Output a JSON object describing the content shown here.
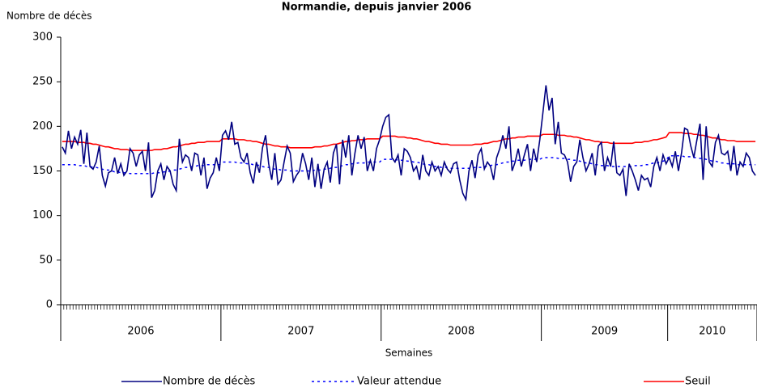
{
  "chart_data": {
    "type": "line",
    "title": "Normandie, depuis janvier 2006",
    "y_label": "Nombre de décès",
    "x_label": "Semaines",
    "ylim": [
      0,
      300
    ],
    "yticks": [
      0,
      50,
      100,
      150,
      200,
      250,
      300
    ],
    "year_groups": [
      {
        "label": "2006",
        "weeks": 52
      },
      {
        "label": "2007",
        "weeks": 52
      },
      {
        "label": "2008",
        "weeks": 52
      },
      {
        "label": "2009",
        "weeks": 41
      },
      {
        "label": "2010",
        "weeks": 29
      }
    ],
    "series": [
      {
        "name": "Nombre de décès",
        "color": "#000080",
        "style": "solid",
        "values": [
          177,
          170,
          195,
          175,
          188,
          180,
          196,
          158,
          193,
          155,
          152,
          160,
          178,
          145,
          133,
          148,
          150,
          165,
          147,
          158,
          145,
          150,
          175,
          170,
          155,
          168,
          172,
          150,
          182,
          120,
          128,
          150,
          158,
          140,
          155,
          150,
          135,
          128,
          186,
          160,
          168,
          165,
          150,
          170,
          168,
          145,
          165,
          130,
          142,
          148,
          165,
          150,
          190,
          195,
          185,
          205,
          180,
          182,
          165,
          160,
          170,
          148,
          136,
          160,
          148,
          176,
          190,
          158,
          140,
          170,
          135,
          140,
          160,
          178,
          170,
          138,
          145,
          150,
          170,
          158,
          140,
          165,
          132,
          158,
          130,
          152,
          160,
          137,
          170,
          180,
          135,
          185,
          165,
          190,
          145,
          170,
          190,
          175,
          188,
          150,
          162,
          150,
          175,
          185,
          200,
          210,
          213,
          165,
          160,
          168,
          145,
          175,
          172,
          165,
          150,
          155,
          140,
          168,
          150,
          145,
          160,
          150,
          155,
          145,
          160,
          152,
          148,
          158,
          160,
          140,
          125,
          118,
          150,
          162,
          142,
          168,
          175,
          152,
          160,
          155,
          140,
          165,
          175,
          190,
          175,
          200,
          150,
          160,
          175,
          155,
          168,
          180,
          150,
          175,
          160,
          185,
          215,
          246,
          218,
          232,
          180,
          205,
          170,
          168,
          160,
          138,
          155,
          160,
          185,
          165,
          150,
          158,
          170,
          145,
          178,
          182,
          150,
          165,
          155,
          183,
          148,
          145,
          152,
          122,
          158,
          150,
          140,
          128,
          145,
          140,
          142,
          132,
          155,
          165,
          150,
          168,
          158,
          165,
          155,
          172,
          150,
          170,
          198,
          196,
          178,
          165,
          185,
          203,
          140,
          200,
          160,
          155,
          182,
          190,
          170,
          168,
          172,
          150,
          178,
          145,
          160,
          155,
          170,
          165,
          150,
          145
        ]
      },
      {
        "name": "Valeur attendue",
        "color": "#0000ff",
        "style": "dotted",
        "values": [
          157,
          157,
          157,
          157,
          157,
          156,
          156,
          156,
          155,
          155,
          154,
          154,
          153,
          152,
          151,
          151,
          150,
          149,
          149,
          148,
          148,
          148,
          147,
          147,
          147,
          147,
          147,
          147,
          147,
          147,
          148,
          148,
          148,
          149,
          149,
          150,
          151,
          151,
          152,
          153,
          154,
          154,
          155,
          155,
          156,
          156,
          156,
          157,
          157,
          157,
          157,
          157,
          160,
          160,
          160,
          160,
          160,
          159,
          159,
          159,
          158,
          158,
          157,
          157,
          156,
          155,
          154,
          154,
          153,
          152,
          152,
          151,
          151,
          151,
          150,
          150,
          150,
          150,
          150,
          150,
          150,
          150,
          151,
          151,
          151,
          152,
          152,
          153,
          154,
          154,
          155,
          156,
          157,
          157,
          158,
          158,
          159,
          159,
          159,
          160,
          160,
          160,
          160,
          160,
          163,
          163,
          163,
          163,
          163,
          162,
          162,
          162,
          161,
          161,
          160,
          160,
          159,
          158,
          157,
          157,
          156,
          155,
          155,
          154,
          154,
          154,
          153,
          153,
          153,
          153,
          153,
          153,
          153,
          153,
          154,
          154,
          154,
          155,
          155,
          156,
          157,
          157,
          158,
          159,
          160,
          160,
          161,
          161,
          162,
          162,
          162,
          163,
          163,
          163,
          163,
          163,
          165,
          165,
          165,
          165,
          165,
          164,
          164,
          164,
          163,
          163,
          162,
          162,
          161,
          160,
          159,
          159,
          158,
          157,
          157,
          156,
          156,
          156,
          155,
          155,
          155,
          155,
          155,
          155,
          155,
          155,
          156,
          156,
          156,
          157,
          157,
          158,
          159,
          159,
          160,
          161,
          162,
          167,
          167,
          167,
          167,
          167,
          166,
          166,
          166,
          165,
          165,
          164,
          164,
          163,
          162,
          161,
          161,
          160,
          159,
          159,
          158,
          158,
          158,
          157,
          157,
          157,
          157,
          157,
          157,
          157
        ]
      },
      {
        "name": "Seuil",
        "color": "#ff0000",
        "style": "solid",
        "values": [
          183,
          183,
          183,
          183,
          183,
          182,
          182,
          182,
          181,
          181,
          180,
          180,
          179,
          178,
          177,
          177,
          176,
          175,
          175,
          174,
          174,
          174,
          173,
          173,
          173,
          173,
          173,
          173,
          173,
          173,
          174,
          174,
          174,
          175,
          175,
          176,
          177,
          177,
          178,
          179,
          180,
          180,
          181,
          181,
          182,
          182,
          182,
          183,
          183,
          183,
          183,
          183,
          186,
          186,
          186,
          186,
          186,
          185,
          185,
          185,
          184,
          184,
          183,
          183,
          182,
          181,
          180,
          180,
          179,
          178,
          178,
          177,
          177,
          177,
          176,
          176,
          176,
          176,
          176,
          176,
          176,
          176,
          177,
          177,
          177,
          178,
          178,
          179,
          180,
          180,
          181,
          182,
          183,
          183,
          184,
          184,
          185,
          185,
          185,
          186,
          186,
          186,
          186,
          186,
          189,
          189,
          189,
          189,
          189,
          188,
          188,
          188,
          187,
          187,
          186,
          186,
          185,
          184,
          183,
          183,
          182,
          181,
          181,
          180,
          180,
          180,
          179,
          179,
          179,
          179,
          179,
          179,
          179,
          179,
          180,
          180,
          180,
          181,
          181,
          182,
          183,
          183,
          184,
          185,
          186,
          186,
          187,
          187,
          188,
          188,
          188,
          189,
          189,
          189,
          189,
          189,
          191,
          191,
          191,
          191,
          191,
          190,
          190,
          190,
          189,
          189,
          188,
          188,
          187,
          186,
          185,
          185,
          184,
          183,
          183,
          182,
          182,
          182,
          181,
          181,
          181,
          181,
          181,
          181,
          181,
          181,
          182,
          182,
          182,
          183,
          183,
          184,
          185,
          185,
          186,
          187,
          188,
          193,
          193,
          193,
          193,
          193,
          192,
          192,
          192,
          191,
          191,
          190,
          190,
          189,
          188,
          187,
          187,
          186,
          185,
          185,
          184,
          184,
          184,
          183,
          183,
          183,
          183,
          183,
          183,
          183
        ]
      }
    ]
  }
}
